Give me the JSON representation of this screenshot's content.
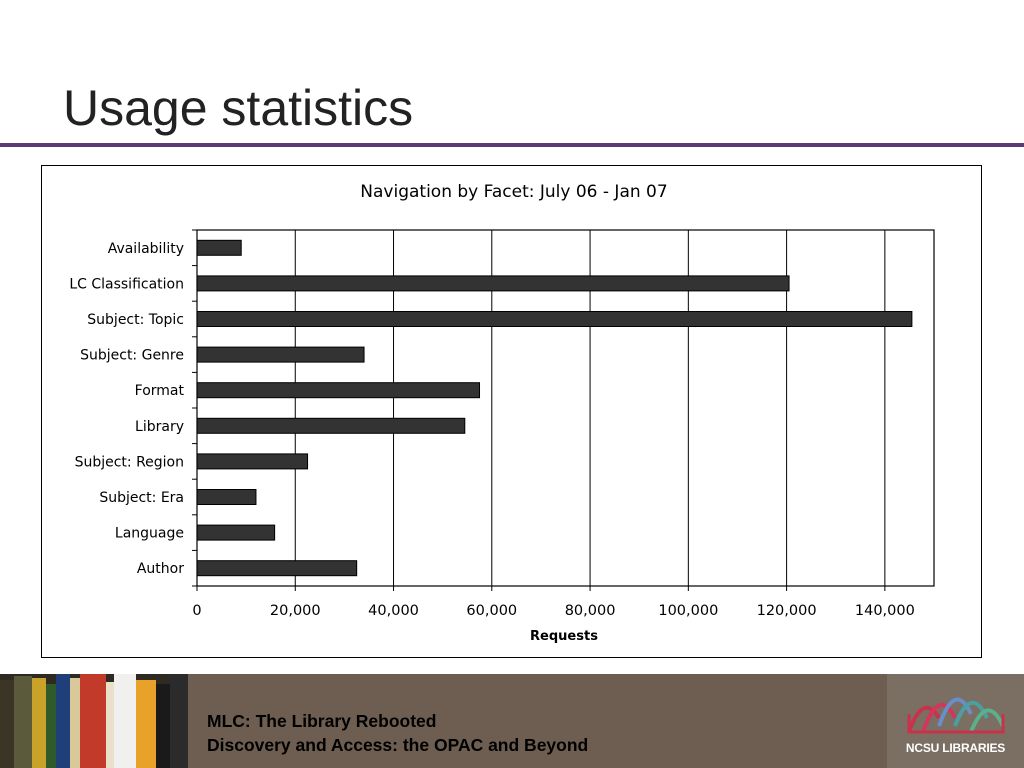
{
  "slide": {
    "title": "Usage statistics"
  },
  "footer": {
    "line1": "MLC: The Library Rebooted",
    "line2": "Discovery and Access: the OPAC and Beyond",
    "logo_text": "NCSU LIBRARIES"
  },
  "colors": {
    "accent_rule": "#5a3b78",
    "bar_fill": "#333333",
    "footer_bg": "#6d5e51"
  },
  "chart_data": {
    "type": "bar",
    "orientation": "horizontal",
    "title": "Navigation by Facet: July 06 - Jan 07",
    "xlabel": "Requests",
    "ylabel": "",
    "categories": [
      "Availability",
      "LC Classification",
      "Subject: Topic",
      "Subject: Genre",
      "Format",
      "Library",
      "Subject: Region",
      "Subject: Era",
      "Language",
      "Author"
    ],
    "values": [
      9000,
      120500,
      145500,
      34000,
      57500,
      54500,
      22500,
      12000,
      15800,
      32500
    ],
    "xlim": [
      0,
      150000
    ],
    "x_ticks": [
      0,
      20000,
      40000,
      60000,
      80000,
      100000,
      120000,
      140000
    ],
    "x_tick_labels": [
      "0",
      "20,000",
      "40,000",
      "60,000",
      "80,000",
      "100,000",
      "120,000",
      "140,000"
    ],
    "grid": "vertical",
    "legend": "none"
  }
}
